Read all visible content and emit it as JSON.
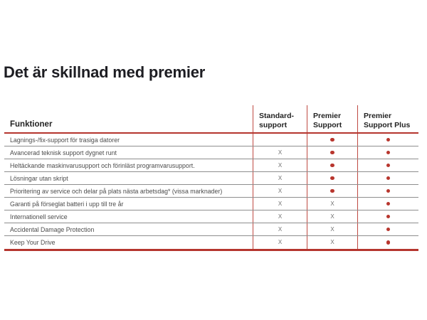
{
  "title": "Det är skillnad med premier",
  "table": {
    "feature_header": "Funktioner",
    "columns": [
      {
        "line1": "Standard-",
        "line2": "support"
      },
      {
        "line1": "Premier",
        "line2": "Support"
      },
      {
        "line1": "Premier",
        "line2": "Support Plus"
      }
    ],
    "x_symbol": "X",
    "rows": [
      {
        "feature": "Lagnings-/fix-support för trasiga datorer",
        "marks": [
          "",
          "dot",
          "dot"
        ]
      },
      {
        "feature": "Avancerad teknisk support dygnet runt",
        "marks": [
          "x",
          "dot",
          "dot"
        ]
      },
      {
        "feature": "Heltäckande maskinvarusupport och förinläst programvarusupport.",
        "marks": [
          "x",
          "dot",
          "dot"
        ]
      },
      {
        "feature": "Lösningar utan skript",
        "marks": [
          "x",
          "dot",
          "dot"
        ]
      },
      {
        "feature": "Prioritering av service och delar på plats nästa arbetsdag* (vissa marknader)",
        "marks": [
          "x",
          "dot",
          "dot"
        ]
      },
      {
        "feature": "Garanti på förseglat batteri i upp till tre år",
        "marks": [
          "x",
          "x",
          "dot"
        ]
      },
      {
        "feature": "Internationell service",
        "marks": [
          "x",
          "x",
          "dot"
        ]
      },
      {
        "feature": "Accidental Damage Protection",
        "marks": [
          "x",
          "x",
          "dot"
        ]
      },
      {
        "feature": "Keep Your Drive",
        "marks": [
          "x",
          "x",
          "dot"
        ]
      }
    ]
  },
  "colors": {
    "accent_red": "#b5352e",
    "grid_red": "#bf4a42",
    "separator_gray": "#8e8e8e",
    "dot_red": "#b8362e"
  }
}
